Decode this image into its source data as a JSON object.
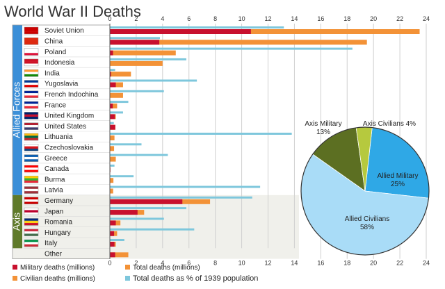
{
  "chart_data": {
    "type": "bar",
    "title": "World War II Deaths",
    "groups": [
      {
        "name": "Allied Forces",
        "countries": [
          "Soviet Union",
          "China",
          "Poland",
          "Indonesia",
          "India",
          "Yugoslavia",
          "French Indochina",
          "France",
          "United Kingdom",
          "United States",
          "Lithuania",
          "Czechoslovakia",
          "Greece",
          "Canada",
          "Burma",
          "Latvia"
        ]
      },
      {
        "name": "Axis",
        "countries": [
          "Germany",
          "Japan",
          "Romania",
          "Hungary",
          "Italy"
        ]
      }
    ],
    "categories": [
      "Soviet Union",
      "China",
      "Poland",
      "Indonesia",
      "India",
      "Yugoslavia",
      "French Indochina",
      "France",
      "United Kingdom",
      "United States",
      "Lithuania",
      "Czechoslovakia",
      "Greece",
      "Canada",
      "Burma",
      "Latvia",
      "Germany",
      "Japan",
      "Romania",
      "Hungary",
      "Italy",
      "Other"
    ],
    "series": [
      {
        "name": "Military deaths (millions)",
        "color": "#c8102e",
        "values": [
          10.7,
          3.75,
          0.24,
          0.0,
          0.09,
          0.45,
          0.0,
          0.22,
          0.38,
          0.41,
          0.0,
          0.03,
          0.02,
          0.04,
          0.02,
          0.0,
          5.5,
          2.1,
          0.45,
          0.32,
          0.35,
          0.4
        ]
      },
      {
        "name": "Total deaths (millions)",
        "color": "#f39237",
        "values": [
          23.5,
          19.5,
          5.0,
          4.0,
          1.6,
          1.0,
          1.0,
          0.55,
          0.45,
          0.42,
          0.35,
          0.32,
          0.45,
          0.04,
          0.27,
          0.25,
          7.6,
          2.6,
          0.8,
          0.55,
          0.45,
          1.4
        ]
      },
      {
        "name": "Total deaths as % of 1939 population",
        "color": "#7ec7dc",
        "values": [
          13.2,
          3.8,
          18.4,
          5.8,
          0.4,
          6.6,
          4.1,
          1.4,
          1.0,
          0.3,
          13.8,
          2.4,
          4.4,
          0.35,
          1.8,
          11.4,
          10.8,
          5.8,
          4.1,
          6.4,
          1.1,
          0.0
        ]
      }
    ],
    "legend": [
      {
        "label": "Military deaths (millions)",
        "color": "#c8102e"
      },
      {
        "label": "Total deaths (millions)",
        "color": "#f39237"
      },
      {
        "label": "Civilian deaths (millions)",
        "color": "#f39237"
      },
      {
        "label": "Total deaths as % of 1939 population",
        "color": "#7ec7dc"
      }
    ],
    "xticks": [
      0,
      2,
      4,
      6,
      8,
      10,
      12,
      14,
      16,
      18,
      20,
      22,
      24
    ],
    "xlim": [
      0,
      24
    ],
    "pie": {
      "type": "pie",
      "slices": [
        {
          "label": "Allied Military",
          "percent_label": "25%",
          "value": 25,
          "color": "#2fa8e6"
        },
        {
          "label": "Allied Civilians",
          "percent_label": "58%",
          "value": 58,
          "color": "#a9dcf7"
        },
        {
          "label": "Axis Military",
          "percent_label": "13%",
          "value": 13,
          "color": "#5c6f22"
        },
        {
          "label": "Axis Civilians 4%",
          "percent_label": "",
          "value": 4,
          "color": "#b6c93e"
        }
      ]
    }
  }
}
